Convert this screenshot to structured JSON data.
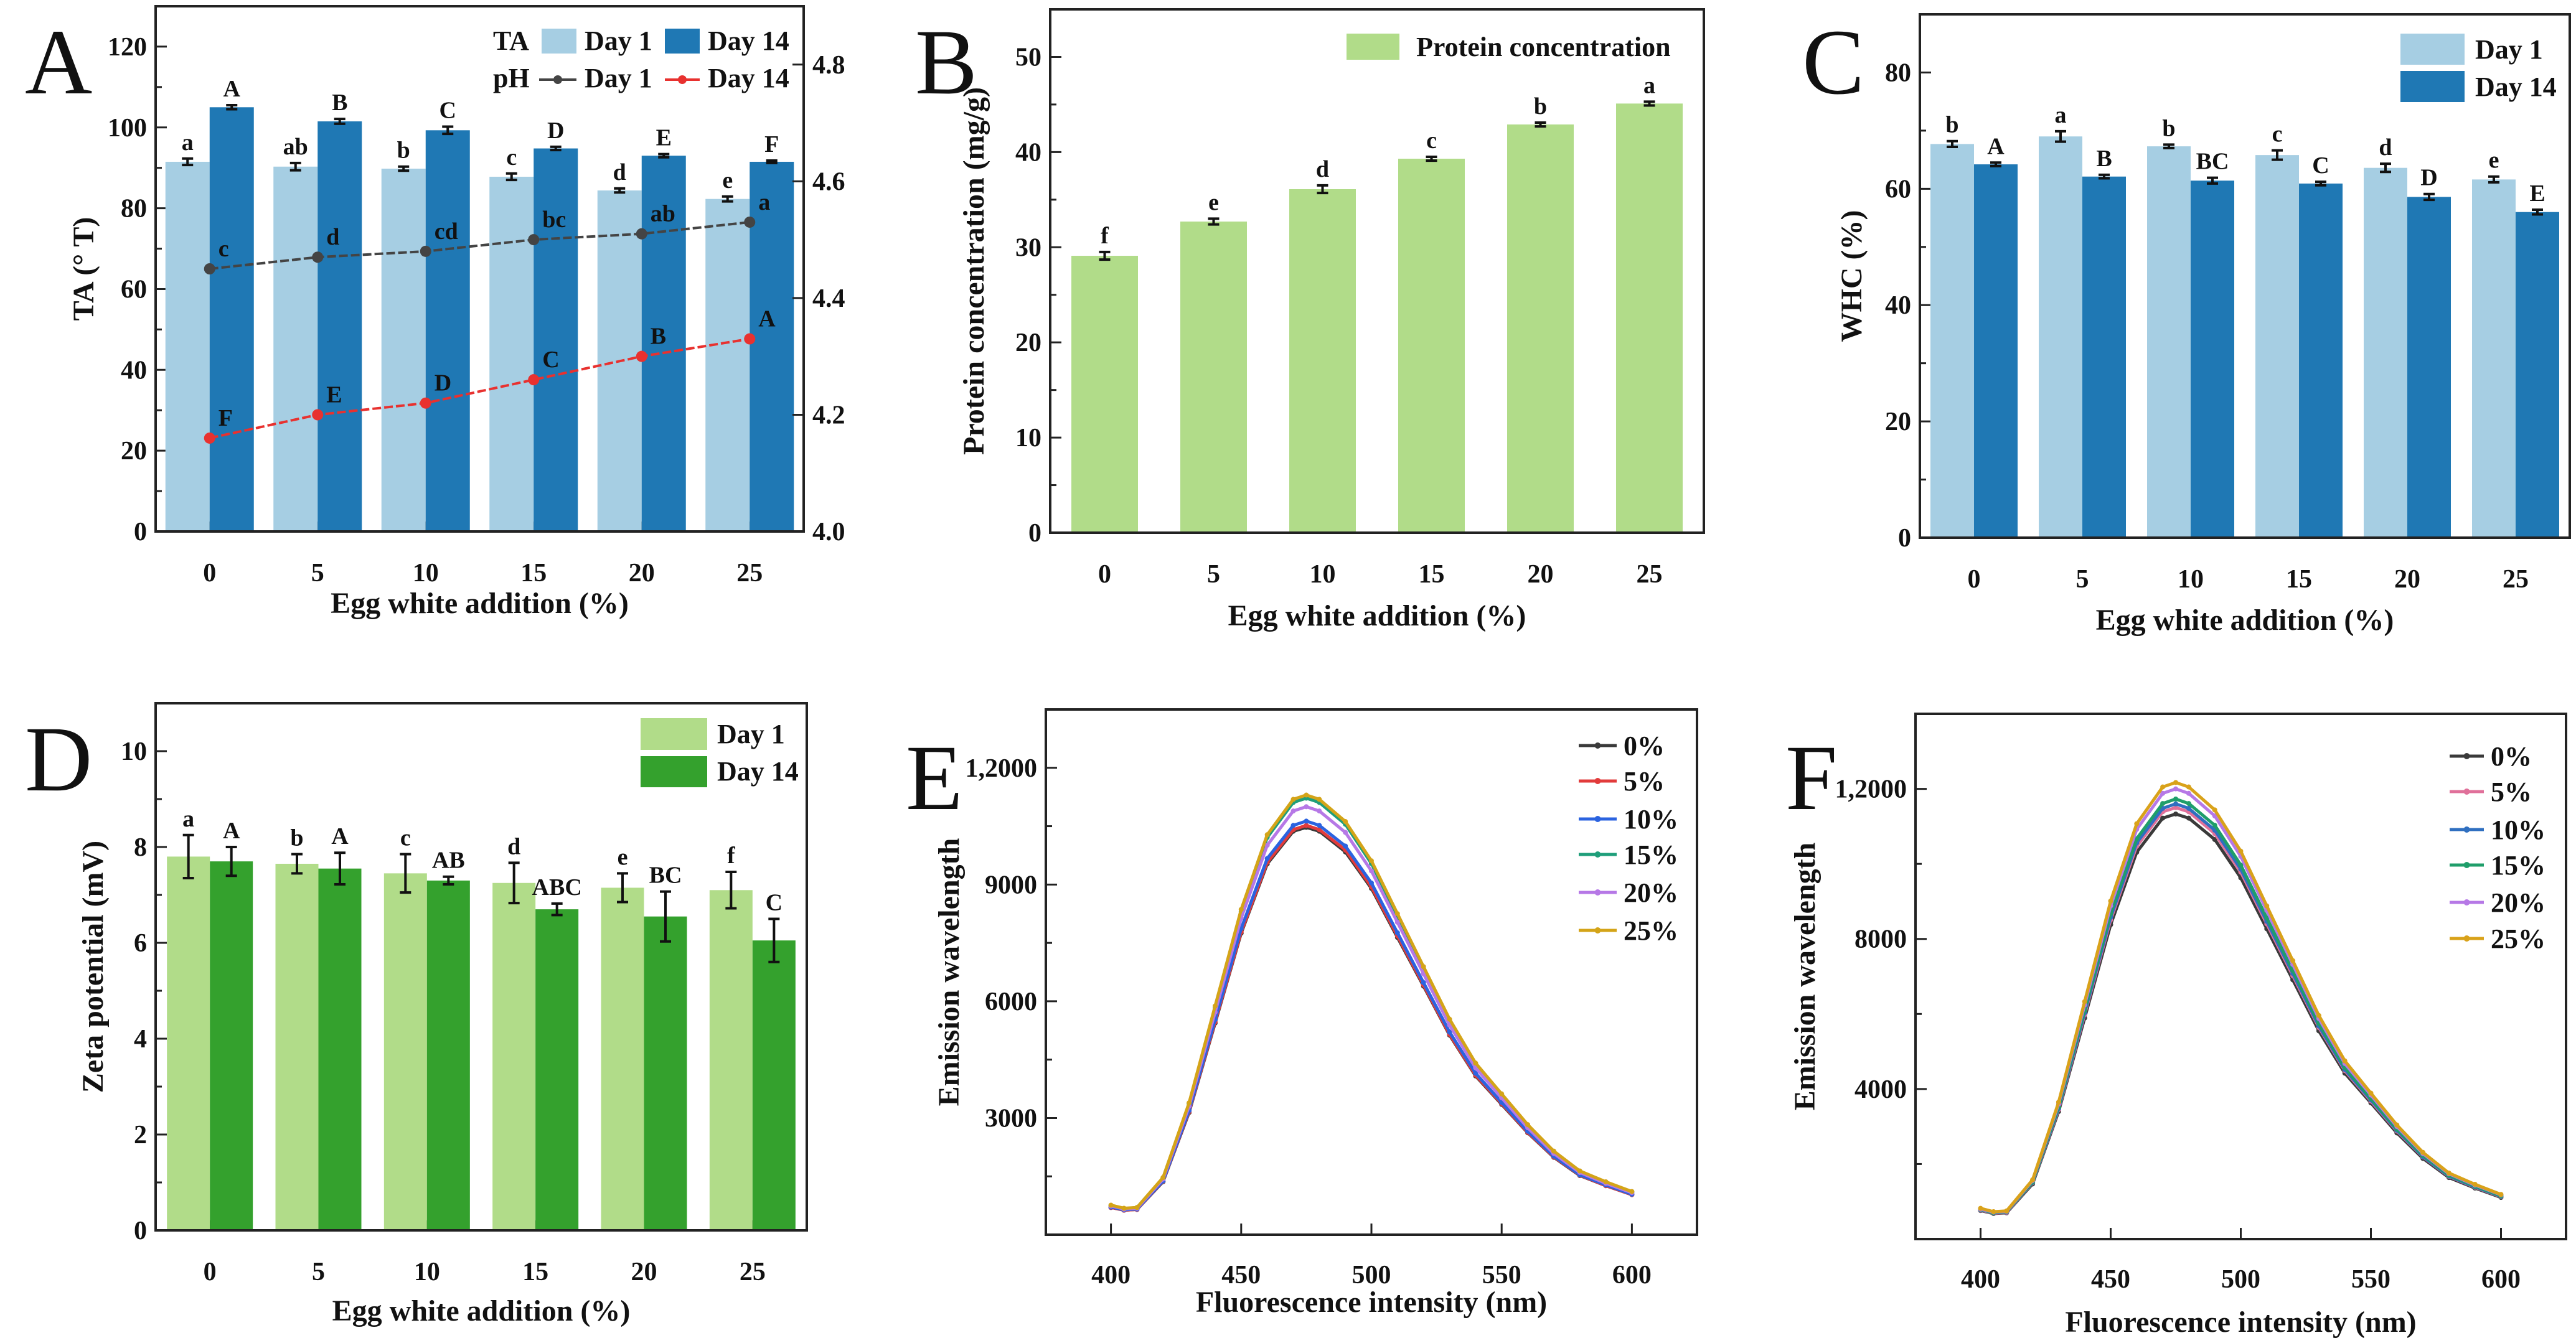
{
  "chart_data": [
    {
      "panel_label": "A",
      "type": "bar+line",
      "categories": [
        "0",
        "5",
        "10",
        "15",
        "20",
        "25"
      ],
      "xlabel": "Egg white addition (%)",
      "ylabel": "TA (° T)",
      "ylim": [
        0,
        130
      ],
      "yticks": [
        0,
        20,
        40,
        60,
        80,
        100,
        120
      ],
      "y2lim": [
        4.0,
        4.9
      ],
      "y2ticks": [
        4.0,
        4.2,
        4.4,
        4.6,
        4.8
      ],
      "y2tick_labels": [
        "4.0",
        "4.2",
        "4.4",
        "4.6",
        "4.8"
      ],
      "legend": {
        "ta_label": "TA",
        "ph_label": "pH",
        "position": "top-right"
      },
      "grid": false,
      "series": [
        {
          "name": "Day 1",
          "group": "TA",
          "type": "bar",
          "axis": "left",
          "color": "#a6cee3",
          "values": [
            91.5,
            90.3,
            89.8,
            87.8,
            84.4,
            82.3
          ],
          "errors": [
            0.8,
            0.9,
            0.5,
            0.8,
            0.5,
            0.6
          ],
          "letters": [
            "a",
            "ab",
            "b",
            "c",
            "d",
            "e"
          ]
        },
        {
          "name": "Day 14",
          "group": "TA",
          "type": "bar",
          "axis": "left",
          "color": "#1f78b4",
          "values": [
            105.0,
            101.5,
            99.3,
            94.8,
            93.0,
            91.5
          ],
          "errors": [
            0.5,
            0.6,
            0.9,
            0.4,
            0.4,
            0.3
          ],
          "letters": [
            "A",
            "B",
            "C",
            "D",
            "E",
            "F"
          ]
        },
        {
          "name": "Day 1",
          "group": "pH",
          "type": "line",
          "axis": "right",
          "color": "#444444",
          "values": [
            4.45,
            4.47,
            4.48,
            4.5,
            4.51,
            4.53
          ],
          "errors": [
            0.01,
            0.01,
            0.01,
            0.005,
            0.005,
            0.005
          ],
          "letters": [
            "c",
            "d",
            "cd",
            "bc",
            "ab",
            "a"
          ]
        },
        {
          "name": "Day 14",
          "group": "pH",
          "type": "line",
          "axis": "right",
          "color": "#e8312f",
          "values": [
            4.16,
            4.2,
            4.22,
            4.26,
            4.3,
            4.33
          ],
          "errors": [
            0.005,
            0.005,
            0.005,
            0.01,
            0.005,
            0.005
          ],
          "letters": [
            "F",
            "E",
            "D",
            "C",
            "B",
            "A"
          ]
        }
      ]
    },
    {
      "panel_label": "B",
      "type": "bar",
      "categories": [
        "0",
        "5",
        "10",
        "15",
        "20",
        "25"
      ],
      "xlabel": "Egg white addition (%)",
      "ylabel": "Protein concentration (mg/g)",
      "ylim": [
        0,
        55
      ],
      "yticks": [
        0,
        10,
        20,
        30,
        40,
        50
      ],
      "legend": {
        "position": "top-right"
      },
      "grid": false,
      "series": [
        {
          "name": "Protein concentration",
          "type": "bar",
          "color": "#b1dc89",
          "values": [
            29.1,
            32.7,
            36.1,
            39.3,
            42.9,
            45.1
          ],
          "errors": [
            0.4,
            0.3,
            0.4,
            0.2,
            0.2,
            0.2
          ],
          "letters": [
            "f",
            "e",
            "d",
            "c",
            "b",
            "a"
          ]
        }
      ]
    },
    {
      "panel_label": "C",
      "type": "bar",
      "categories": [
        "0",
        "5",
        "10",
        "15",
        "20",
        "25"
      ],
      "xlabel": "Egg white addition (%)",
      "ylabel": "WHC (%)",
      "ylim": [
        0,
        90
      ],
      "yticks": [
        0,
        20,
        40,
        60,
        80
      ],
      "legend": {
        "position": "top-right"
      },
      "grid": false,
      "series": [
        {
          "name": "Day 1",
          "type": "bar",
          "color": "#a6cee3",
          "values": [
            67.7,
            69.0,
            67.3,
            65.8,
            63.6,
            61.6
          ],
          "errors": [
            0.5,
            0.9,
            0.3,
            0.8,
            0.7,
            0.5
          ],
          "letters": [
            "b",
            "a",
            "b",
            "c",
            "d",
            "e"
          ]
        },
        {
          "name": "Day 14",
          "type": "bar",
          "color": "#1f78b4",
          "values": [
            64.2,
            62.1,
            61.4,
            60.9,
            58.6,
            56.0
          ],
          "errors": [
            0.3,
            0.3,
            0.5,
            0.3,
            0.5,
            0.4
          ],
          "letters": [
            "A",
            "B",
            "BC",
            "C",
            "D",
            "E"
          ]
        }
      ]
    },
    {
      "panel_label": "D",
      "type": "bar",
      "categories": [
        "0",
        "5",
        "10",
        "15",
        "20",
        "25"
      ],
      "xlabel": "Egg white addition (%)",
      "ylabel": "Zeta potential (mV)",
      "ylim": [
        0,
        11
      ],
      "yticks": [
        0,
        2,
        4,
        6,
        8,
        10
      ],
      "legend": {
        "position": "top-right"
      },
      "grid": false,
      "series": [
        {
          "name": "Day 1",
          "type": "bar",
          "color": "#b1dc89",
          "values": [
            7.8,
            7.65,
            7.45,
            7.25,
            7.15,
            7.1
          ],
          "errors": [
            0.45,
            0.2,
            0.4,
            0.42,
            0.3,
            0.38
          ],
          "letters": [
            "a",
            "b",
            "c",
            "d",
            "e",
            "f"
          ]
        },
        {
          "name": "Day 14",
          "type": "bar",
          "color": "#34a12d",
          "values": [
            7.7,
            7.55,
            7.3,
            6.7,
            6.55,
            6.05
          ],
          "errors": [
            0.3,
            0.33,
            0.08,
            0.12,
            0.52,
            0.45
          ],
          "letters": [
            "A",
            "A",
            "AB",
            "ABC",
            "BC",
            "C"
          ]
        }
      ]
    },
    {
      "panel_label": "E",
      "type": "line",
      "xlabel": "Fluorescence intensity (nm)",
      "ylabel": "Emission wavelength",
      "xlim": [
        375,
        625
      ],
      "xticks": [
        400,
        450,
        500,
        550,
        600
      ],
      "ylim": [
        0,
        13500
      ],
      "yticks": [
        3000,
        6000,
        9000,
        12000
      ],
      "ytick_labels": [
        "3000",
        "6000",
        "9000",
        "1,2000"
      ],
      "legend": {
        "position": "top-right"
      },
      "grid": false,
      "x": [
        400,
        405,
        410,
        420,
        430,
        440,
        450,
        460,
        470,
        475,
        480,
        490,
        500,
        510,
        520,
        530,
        540,
        550,
        560,
        570,
        580,
        590,
        600
      ],
      "series": [
        {
          "name": "0%",
          "color": "#3a3a3a",
          "values": [
            700,
            630,
            650,
            1360,
            3140,
            5440,
            7750,
            9530,
            10370,
            10470,
            10370,
            9840,
            8900,
            7640,
            6390,
            5130,
            4080,
            3350,
            2620,
            1990,
            1520,
            1260,
            1030
          ]
        },
        {
          "name": "5%",
          "color": "#e23b3b",
          "values": [
            700,
            630,
            650,
            1370,
            3160,
            5470,
            7780,
            9570,
            10410,
            10520,
            10410,
            9890,
            8940,
            7680,
            6420,
            5150,
            4100,
            3370,
            2630,
            2000,
            1530,
            1260,
            1030
          ]
        },
        {
          "name": "10%",
          "color": "#2b63e0",
          "values": [
            710,
            640,
            660,
            1380,
            3190,
            5530,
            7870,
            9670,
            10520,
            10630,
            10520,
            9990,
            9040,
            7760,
            6480,
            5210,
            4150,
            3400,
            2660,
            2020,
            1540,
            1280,
            1040
          ]
        },
        {
          "name": "15%",
          "color": "#1f9e7a",
          "values": [
            750,
            670,
            700,
            1460,
            3370,
            5830,
            8300,
            10210,
            11110,
            11220,
            11110,
            10550,
            9540,
            8190,
            6840,
            5500,
            4380,
            3590,
            2810,
            2130,
            1630,
            1350,
            1100
          ]
        },
        {
          "name": "20%",
          "color": "#b678e6",
          "values": [
            740,
            660,
            680,
            1430,
            3300,
            5720,
            8140,
            10010,
            10890,
            11000,
            10890,
            10340,
            9350,
            8030,
            6710,
            5390,
            4290,
            3520,
            2750,
            2090,
            1600,
            1320,
            1080
          ]
        },
        {
          "name": "25%",
          "color": "#d4a418",
          "values": [
            760,
            680,
            700,
            1470,
            3390,
            5880,
            8360,
            10280,
            11190,
            11300,
            11190,
            10620,
            9610,
            8250,
            6890,
            5540,
            4410,
            3620,
            2830,
            2150,
            1640,
            1360,
            1110
          ]
        }
      ]
    },
    {
      "panel_label": "F",
      "type": "line",
      "xlabel": "Fluorescence intensity (nm)",
      "ylabel": "Emission wavelength",
      "xlim": [
        375,
        625
      ],
      "xticks": [
        400,
        450,
        500,
        550,
        600
      ],
      "ylim": [
        0,
        14000
      ],
      "yticks": [
        4000,
        8000,
        12000
      ],
      "ytick_labels": [
        "4000",
        "8000",
        "1,2000"
      ],
      "legend": {
        "position": "top-right"
      },
      "grid": false,
      "x": [
        400,
        405,
        410,
        420,
        430,
        440,
        450,
        460,
        470,
        475,
        480,
        490,
        500,
        510,
        520,
        530,
        540,
        550,
        560,
        570,
        580,
        590,
        600
      ],
      "series": [
        {
          "name": "0%",
          "color": "#3a3a3a",
          "values": [
            760,
            680,
            700,
            1470,
            3400,
            5890,
            8380,
            10310,
            11220,
            11330,
            11220,
            10650,
            9630,
            8270,
            6910,
            5550,
            4420,
            3630,
            2830,
            2150,
            1640,
            1360,
            1110
          ]
        },
        {
          "name": "5%",
          "color": "#e0709a",
          "values": [
            770,
            690,
            710,
            1500,
            3450,
            5980,
            8510,
            10470,
            11390,
            11500,
            11390,
            10810,
            9780,
            8400,
            7020,
            5640,
            4490,
            3680,
            2880,
            2190,
            1670,
            1380,
            1130
          ]
        },
        {
          "name": "10%",
          "color": "#2f6fc0",
          "values": [
            780,
            700,
            720,
            1510,
            3480,
            6030,
            8580,
            10560,
            11480,
            11600,
            11480,
            10900,
            9860,
            8470,
            7080,
            5680,
            4520,
            3710,
            2900,
            2200,
            1680,
            1390,
            1140
          ]
        },
        {
          "name": "15%",
          "color": "#1f9e6a",
          "values": [
            790,
            700,
            730,
            1520,
            3520,
            6100,
            8680,
            10670,
            11610,
            11730,
            11610,
            11030,
            9970,
            8560,
            7160,
            5750,
            4570,
            3750,
            2930,
            2230,
            1700,
            1410,
            1150
          ]
        },
        {
          "name": "20%",
          "color": "#b678e6",
          "values": [
            800,
            720,
            740,
            1560,
            3600,
            6240,
            8880,
            10920,
            11880,
            12000,
            11880,
            11280,
            10200,
            8760,
            7320,
            5880,
            4680,
            3840,
            3000,
            2280,
            1740,
            1440,
            1180
          ]
        },
        {
          "name": "25%",
          "color": "#d9a21a",
          "values": [
            820,
            730,
            750,
            1580,
            3650,
            6330,
            9010,
            11070,
            12050,
            12170,
            12050,
            11440,
            10340,
            8880,
            7420,
            5960,
            4750,
            3890,
            3040,
            2310,
            1760,
            1460,
            1190
          ]
        }
      ]
    }
  ]
}
